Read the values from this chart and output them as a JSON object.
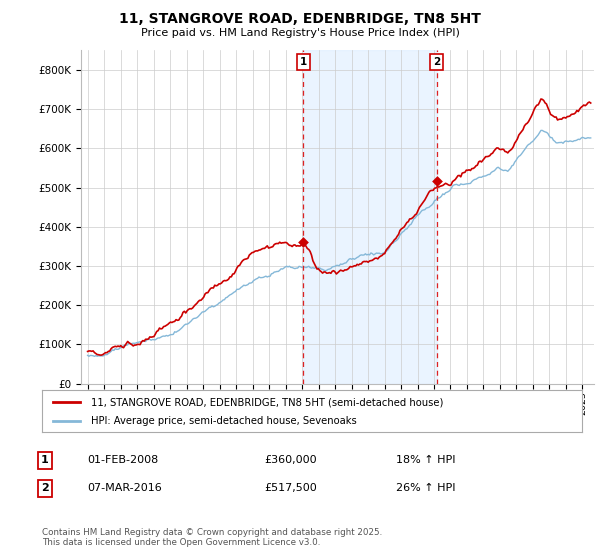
{
  "title": "11, STANGROVE ROAD, EDENBRIDGE, TN8 5HT",
  "subtitle": "Price paid vs. HM Land Registry's House Price Index (HPI)",
  "legend_line1": "11, STANGROVE ROAD, EDENBRIDGE, TN8 5HT (semi-detached house)",
  "legend_line2": "HPI: Average price, semi-detached house, Sevenoaks",
  "annotation1_label": "1",
  "annotation1_date": "01-FEB-2008",
  "annotation1_price": "£360,000",
  "annotation1_hpi": "18% ↑ HPI",
  "annotation2_label": "2",
  "annotation2_date": "07-MAR-2016",
  "annotation2_price": "£517,500",
  "annotation2_hpi": "26% ↑ HPI",
  "footer": "Contains HM Land Registry data © Crown copyright and database right 2025.\nThis data is licensed under the Open Government Licence v3.0.",
  "line_color_red": "#cc0000",
  "line_color_blue": "#85b8d8",
  "shading_color": "#ddeeff",
  "vline_color": "#dd2222",
  "annotation_box_color": "#cc0000",
  "background_color": "#ffffff",
  "ylim": [
    0,
    850000
  ],
  "yticks": [
    0,
    100000,
    200000,
    300000,
    400000,
    500000,
    600000,
    700000,
    800000
  ],
  "ytick_labels": [
    "£0",
    "£100K",
    "£200K",
    "£300K",
    "£400K",
    "£500K",
    "£600K",
    "£700K",
    "£800K"
  ],
  "purchase1_year": 2008.08,
  "purchase2_year": 2016.17,
  "purchase1_value": 360000,
  "purchase2_value": 517500
}
